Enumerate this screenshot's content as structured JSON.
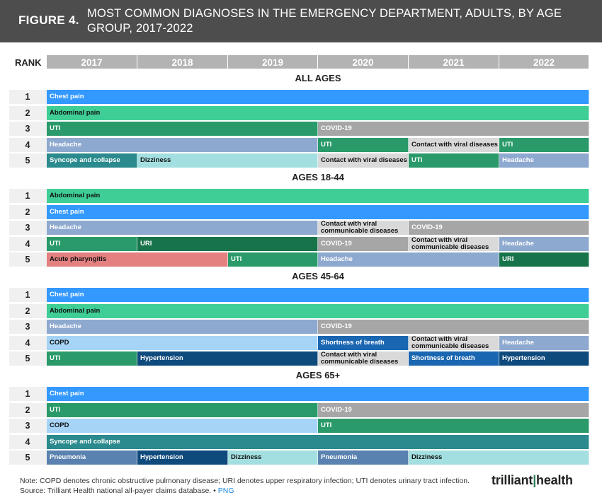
{
  "header": {
    "figure_label": "FIGURE 4.",
    "title": "MOST COMMON DIAGNOSES IN THE EMERGENCY DEPARTMENT, ADULTS, BY AGE GROUP, 2017-2022"
  },
  "rank_header": "RANK",
  "colors": {
    "Chest pain": "#3399ff",
    "Abdominal pain": "#3fce95",
    "UTI": "#2a9a6a",
    "COVID-19": "#a6a6a6",
    "Headache": "#8ea9cf",
    "Contact with viral diseases": "#d9d9d9",
    "Contact with viral communicable diseases": "#d9d9d9",
    "Syncope and collapse": "#2b8a8d",
    "Dizziness": "#a3dfe0",
    "URI": "#17734a",
    "Acute pharyngitis": "#e48080",
    "COPD": "#a6d4f7",
    "Shortness of breath": "#1a66b0",
    "Hypertension": "#0f4a7d",
    "Pneumonia": "#5a82b0"
  },
  "dark_text": [
    "Abdominal pain",
    "Contact with viral diseases",
    "Contact with viral communicable diseases",
    "Dizziness",
    "COPD",
    "Acute pharyngitis"
  ],
  "chart_data": {
    "type": "table",
    "years": [
      "2017",
      "2018",
      "2019",
      "2020",
      "2021",
      "2022"
    ],
    "sections": [
      {
        "title": "ALL AGES",
        "rows": [
          {
            "rank": "1",
            "cells": [
              "Chest pain",
              "Chest pain",
              "Chest pain",
              "Chest pain",
              "Chest pain",
              "Chest pain"
            ]
          },
          {
            "rank": "2",
            "cells": [
              "Abdominal pain",
              "Abdominal pain",
              "Abdominal pain",
              "Abdominal pain",
              "Abdominal pain",
              "Abdominal pain"
            ]
          },
          {
            "rank": "3",
            "cells": [
              "UTI",
              "UTI",
              "UTI",
              "COVID-19",
              "COVID-19",
              "COVID-19"
            ]
          },
          {
            "rank": "4",
            "cells": [
              "Headache",
              "Headache",
              "Headache",
              "UTI",
              "Contact with viral diseases",
              "UTI"
            ]
          },
          {
            "rank": "5",
            "cells": [
              "Syncope and collapse",
              "Dizziness",
              "Dizziness",
              "Contact with viral diseases",
              "UTI",
              "Headache"
            ]
          }
        ]
      },
      {
        "title": "AGES 18-44",
        "rows": [
          {
            "rank": "1",
            "cells": [
              "Abdominal pain",
              "Abdominal pain",
              "Abdominal pain",
              "Abdominal pain",
              "Abdominal pain",
              "Abdominal pain"
            ]
          },
          {
            "rank": "2",
            "cells": [
              "Chest pain",
              "Chest pain",
              "Chest pain",
              "Chest pain",
              "Chest pain",
              "Chest pain"
            ]
          },
          {
            "rank": "3",
            "cells": [
              "Headache",
              "Headache",
              "Headache",
              "Contact with viral communicable diseases",
              "COVID-19",
              "COVID-19"
            ]
          },
          {
            "rank": "4",
            "cells": [
              "UTI",
              "URI",
              "URI",
              "COVID-19",
              "Contact with viral communicable diseases",
              "Headache"
            ]
          },
          {
            "rank": "5",
            "cells": [
              "Acute pharyngitis",
              "Acute pharyngitis",
              "UTI",
              "Headache",
              "Headache",
              "URI"
            ]
          }
        ]
      },
      {
        "title": "AGES 45-64",
        "rows": [
          {
            "rank": "1",
            "cells": [
              "Chest pain",
              "Chest pain",
              "Chest pain",
              "Chest pain",
              "Chest pain",
              "Chest pain"
            ]
          },
          {
            "rank": "2",
            "cells": [
              "Abdominal pain",
              "Abdominal pain",
              "Abdominal pain",
              "Abdominal pain",
              "Abdominal pain",
              "Abdominal pain"
            ]
          },
          {
            "rank": "3",
            "cells": [
              "Headache",
              "Headache",
              "Headache",
              "COVID-19",
              "COVID-19",
              "COVID-19"
            ]
          },
          {
            "rank": "4",
            "cells": [
              "COPD",
              "COPD",
              "COPD",
              "Shortness of breath",
              "Contact with viral communicable diseases",
              "Headache"
            ]
          },
          {
            "rank": "5",
            "cells": [
              "UTI",
              "Hypertension",
              "Hypertension",
              "Contact with viral communicable diseases",
              "Shortness of breath",
              "Hypertension"
            ]
          }
        ]
      },
      {
        "title": "AGES 65+",
        "rows": [
          {
            "rank": "1",
            "cells": [
              "Chest pain",
              "Chest pain",
              "Chest pain",
              "Chest pain",
              "Chest pain",
              "Chest pain"
            ]
          },
          {
            "rank": "2",
            "cells": [
              "UTI",
              "UTI",
              "UTI",
              "COVID-19",
              "COVID-19",
              "COVID-19"
            ]
          },
          {
            "rank": "3",
            "cells": [
              "COPD",
              "COPD",
              "COPD",
              "UTI",
              "UTI",
              "UTI"
            ]
          },
          {
            "rank": "4",
            "cells": [
              "Syncope and collapse",
              "Syncope and collapse",
              "Syncope and collapse",
              "Syncope and collapse",
              "Syncope and collapse",
              "Syncope and collapse"
            ]
          },
          {
            "rank": "5",
            "cells": [
              "Pneumonia",
              "Hypertension",
              "Dizziness",
              "Pneumonia",
              "Dizziness",
              "Dizziness"
            ]
          }
        ]
      }
    ]
  },
  "footer": {
    "note": "Note: COPD denotes chronic obstructive pulmonary disease; URI denotes upper respiratory infection; UTI denotes urinary tract infection.",
    "source": "Source: Trilliant Health national all-payer claims database.",
    "separator": "•",
    "png_link": "PNG",
    "logo_text_a": "trilliant",
    "logo_text_b": "health"
  }
}
